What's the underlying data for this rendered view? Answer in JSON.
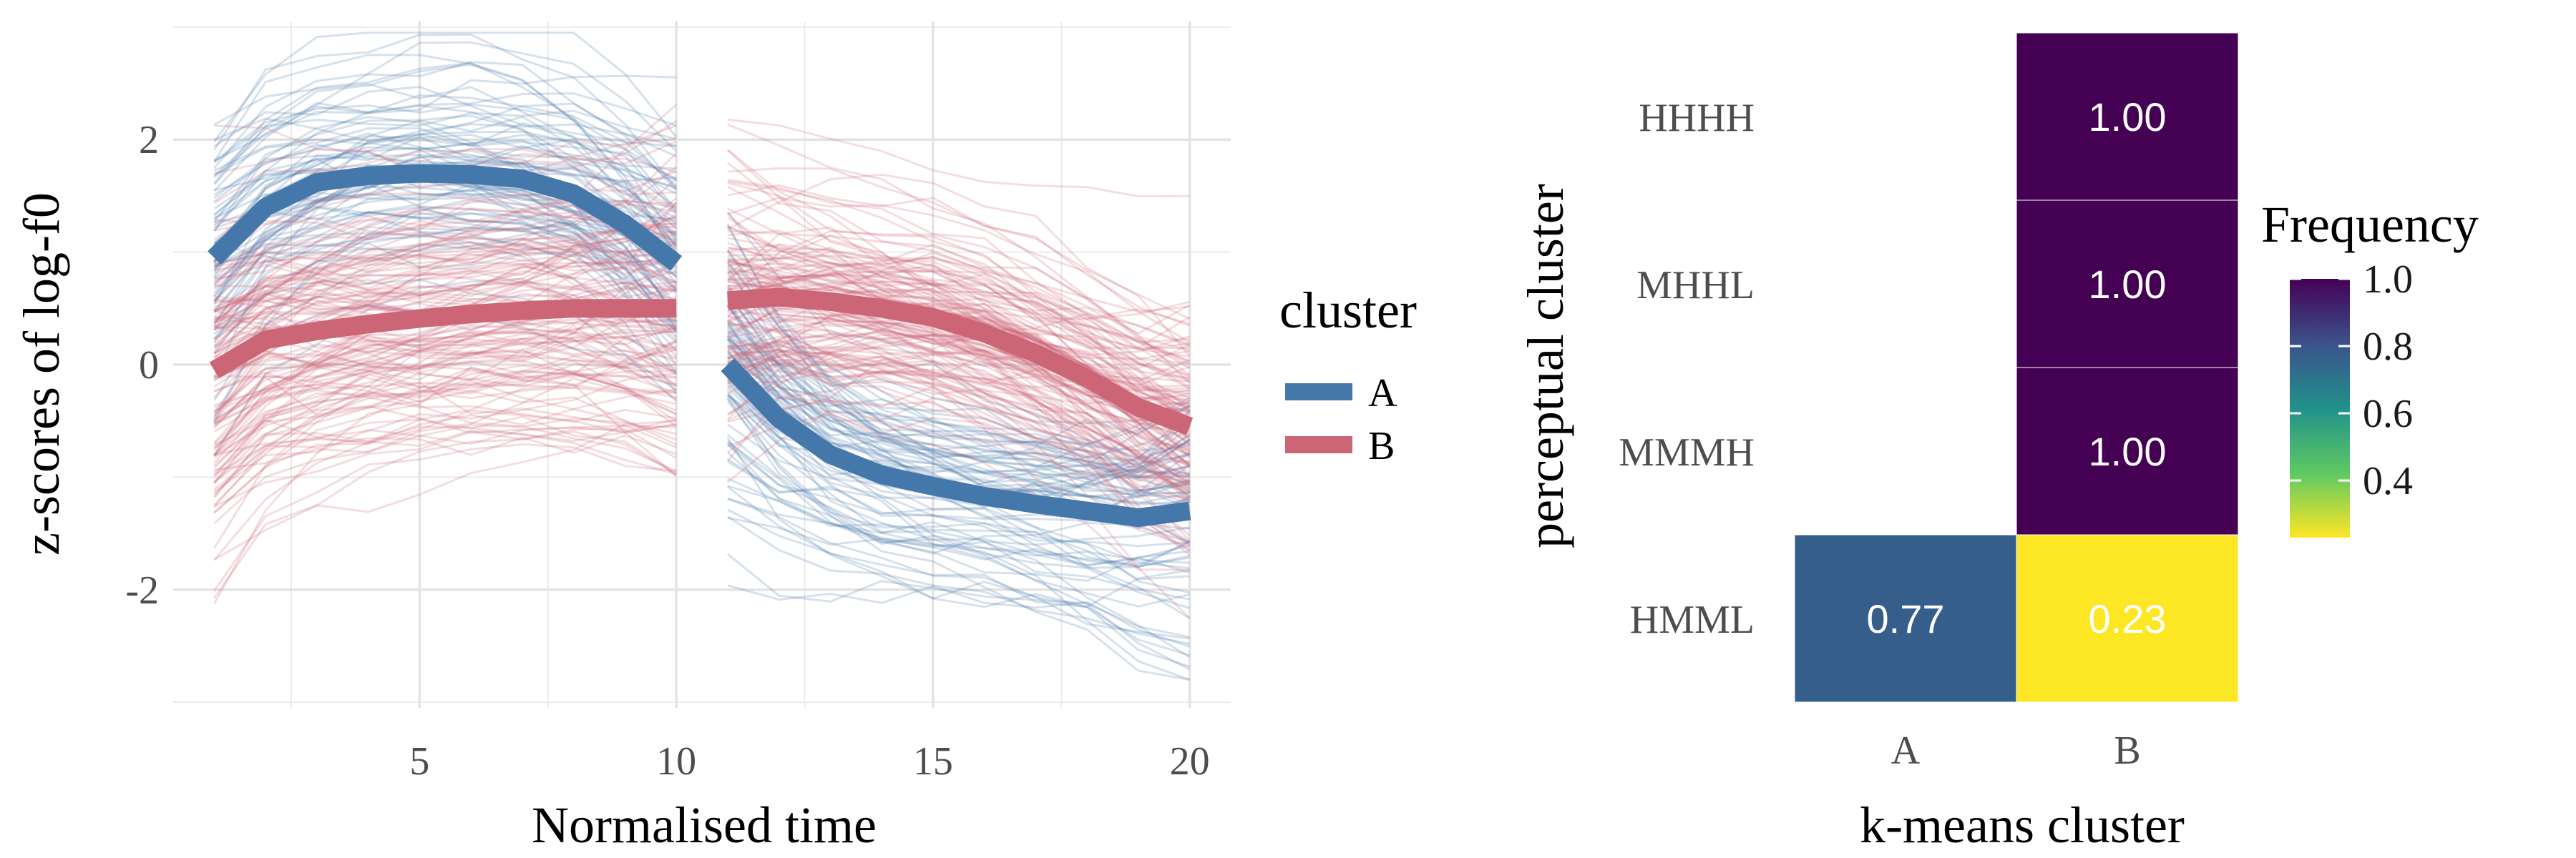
{
  "chart_data": [
    {
      "type": "line",
      "xlabel": "Normalised time",
      "ylabel": "z-scores of log-f0",
      "xlim": [
        0.2,
        20.8
      ],
      "ylim": [
        -3.05,
        3.05
      ],
      "x_ticks": [
        5,
        10,
        15,
        20
      ],
      "y_ticks": [
        -2,
        0,
        2
      ],
      "grid": true,
      "legend": {
        "title": "cluster",
        "placement": "right",
        "entries": [
          {
            "label": "A",
            "color": "#4477aa"
          },
          {
            "label": "B",
            "color": "#cc6677"
          }
        ]
      },
      "series": [
        {
          "name": "A",
          "color": "#4477aa",
          "segments": [
            {
              "x": [
                1,
                2,
                3,
                4,
                5,
                6,
                7,
                8,
                9,
                10
              ],
              "y": [
                0.95,
                1.4,
                1.62,
                1.68,
                1.7,
                1.69,
                1.65,
                1.52,
                1.25,
                0.9
              ]
            },
            {
              "x": [
                11,
                12,
                13,
                14,
                15,
                16,
                17,
                18,
                19,
                20
              ],
              "y": [
                0.0,
                -0.48,
                -0.8,
                -0.98,
                -1.08,
                -1.17,
                -1.24,
                -1.3,
                -1.36,
                -1.3
              ]
            }
          ]
        },
        {
          "name": "B",
          "color": "#cc6677",
          "segments": [
            {
              "x": [
                1,
                2,
                3,
                4,
                5,
                6,
                7,
                8,
                9,
                10
              ],
              "y": [
                -0.05,
                0.22,
                0.3,
                0.36,
                0.41,
                0.45,
                0.48,
                0.5,
                0.5,
                0.5
              ]
            },
            {
              "x": [
                11,
                12,
                13,
                14,
                15,
                16,
                17,
                18,
                19,
                20
              ],
              "y": [
                0.57,
                0.6,
                0.56,
                0.5,
                0.42,
                0.28,
                0.1,
                -0.12,
                -0.38,
                -0.55
              ]
            }
          ]
        }
      ],
      "individual_trajectories": {
        "A_count": 80,
        "B_count": 140,
        "opacity": 0.22
      }
    },
    {
      "type": "heatmap",
      "xlabel": "k-means cluster",
      "ylabel": "perceptual cluster",
      "x_categories": [
        "A",
        "B"
      ],
      "y_categories": [
        "HHHH",
        "MHHL",
        "MMMH",
        "HMML"
      ],
      "cells": [
        {
          "x": "B",
          "y": "HHHH",
          "value": 1.0,
          "label": "1.00"
        },
        {
          "x": "B",
          "y": "MHHL",
          "value": 1.0,
          "label": "1.00"
        },
        {
          "x": "B",
          "y": "MMMH",
          "value": 1.0,
          "label": "1.00"
        },
        {
          "x": "A",
          "y": "HMML",
          "value": 0.77,
          "label": "0.77"
        },
        {
          "x": "B",
          "y": "HMML",
          "value": 0.23,
          "label": "0.23"
        }
      ],
      "colorbar": {
        "title": "Frequency",
        "range": [
          0.23,
          1.0
        ],
        "ticks": [
          0.4,
          0.6,
          0.8,
          1.0
        ],
        "tick_labels": [
          "0.4",
          "0.6",
          "0.8",
          "1.0"
        ],
        "colormap": "viridis (reversed)",
        "placement": "right"
      }
    }
  ]
}
